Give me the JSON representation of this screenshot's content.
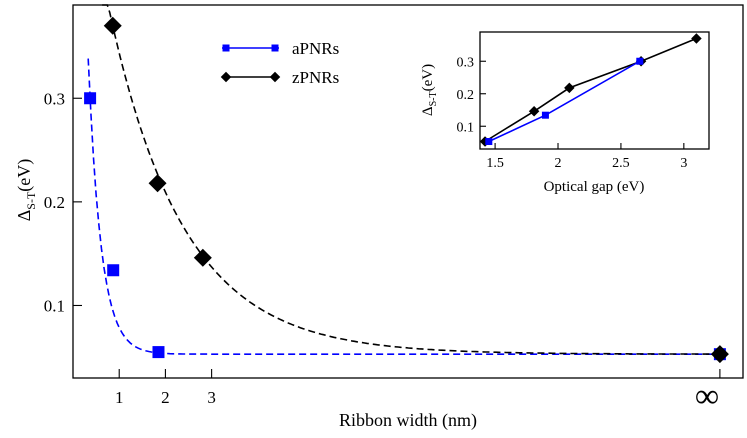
{
  "chart_data": [
    {
      "type": "scatter",
      "xlabel": "Ribbon width (nm)",
      "ylabel": "Δ",
      "ylabel_sub": "S-T",
      "ylabel_unit": "(eV)",
      "x_ticks": [
        "1",
        "2",
        "3"
      ],
      "x_break_label": "∞",
      "x_break_value": 14.0,
      "xlim": [
        0,
        14.5
      ],
      "ylim": [
        0.03,
        0.39
      ],
      "y_ticks": [
        "0.1",
        "0.2",
        "0.3"
      ],
      "legend_position": "top-center",
      "series": [
        {
          "name": "aPNRs",
          "color": "#0000ff",
          "marker": "square",
          "x": [
            0.37,
            0.87,
            1.85,
            14.0
          ],
          "y": [
            0.3,
            0.134,
            0.055,
            0.053
          ],
          "fit_style": "dashed"
        },
        {
          "name": "zPNRs",
          "color": "#000000",
          "marker": "diamond",
          "x": [
            0.86,
            1.83,
            2.81,
            14.0
          ],
          "y": [
            0.37,
            0.218,
            0.146,
            0.053
          ],
          "fit_style": "dashed"
        }
      ]
    },
    {
      "type": "line",
      "inset": true,
      "xlabel": "Optical gap (eV)",
      "ylabel": "Δ",
      "ylabel_sub": "S-T",
      "ylabel_unit": "(eV)",
      "xlim": [
        1.38,
        3.2
      ],
      "ylim": [
        0.03,
        0.39
      ],
      "x_ticks": [
        "1.5",
        "2",
        "2.5",
        "3"
      ],
      "y_ticks": [
        "0.1",
        "0.2",
        "0.3"
      ],
      "series": [
        {
          "name": "aPNRs",
          "color": "#0000ff",
          "marker": "square",
          "x": [
            1.45,
            1.9,
            2.65
          ],
          "y": [
            0.053,
            0.134,
            0.3
          ]
        },
        {
          "name": "zPNRs",
          "color": "#000000",
          "marker": "diamond",
          "x": [
            1.42,
            1.81,
            2.09,
            2.66,
            3.1
          ],
          "y": [
            0.053,
            0.146,
            0.218,
            0.3,
            0.37
          ]
        }
      ]
    }
  ]
}
